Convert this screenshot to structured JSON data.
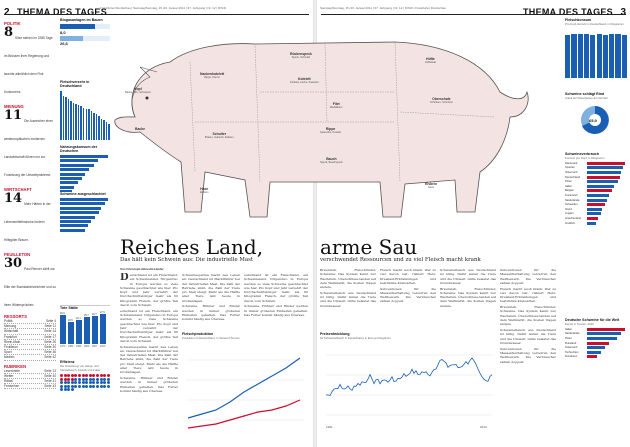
{
  "left_page": {
    "page_number": "2",
    "section": "THEMA DES TAGES",
    "header_meta": "Frankfurter Rundschau | Samstag/Sonntag, 15./16. Januar 2011 | 67. Jahrgang | Nr. 12 | R/S/D",
    "sidebar": {
      "blocks": [
        {
          "kicker": "POLITIK",
          "number": "8",
          "text": "Sitze stehen im 2285 Tage im Brüssen ihrer Regierung und tauchte allmählich dem Fink Konkurrenz."
        },
        {
          "kicker": "MEINUNG",
          "number": "11",
          "text": "Die Ausreicher einer westeuropäischen modernen Landwirtschaft führen nur zur Forsetzung der Umweltprobleme."
        },
        {
          "kicker": "WIRTSCHAFT",
          "number": "14",
          "text": "Mehr Härten in der Lebensmittelbranche fordern Hilfsgüter Brauer."
        },
        {
          "kicker": "FEUILLETON",
          "number": "30",
          "text": "Paul Renner zählt zur Elite der Buchstabenzeichner und zu ihren Widersprüchen."
        }
      ],
      "ressorts_title": "RESSORTS",
      "ressorts": [
        {
          "name": "Politik",
          "page": "Seite 4"
        },
        {
          "name": "Meinung",
          "page": "Seite 11"
        },
        {
          "name": "Wirtschaft",
          "page": "Seite 14"
        },
        {
          "name": "Frankfurt",
          "page": "Seite 17"
        },
        {
          "name": "Rhein-Main",
          "page": "Seite 26"
        },
        {
          "name": "Feuilleton",
          "page": "Seite 30"
        },
        {
          "name": "Sport",
          "page": "Seite 36"
        },
        {
          "name": "Medien",
          "page": "Seite 42"
        }
      ],
      "rubriken_title": "RUBRIKEN",
      "rubriken": [
        {
          "name": "Leserbriefe",
          "page": "Seite 13"
        },
        {
          "name": "Wetter",
          "page": "Seite 40"
        },
        {
          "name": "Rätsel",
          "page": "Seite 41"
        },
        {
          "name": "Fernsehen",
          "page": "Seite 43"
        }
      ]
    },
    "charts": {
      "biogas_title": "Biogasanlagen im Bauen",
      "biogas_value": "8,0",
      "biogas_value2": "26,6",
      "fleisch_title": "Fleischverzehr in Deutschland",
      "fleisch_bars": [
        68,
        62,
        60,
        57,
        54,
        52,
        50,
        49,
        47,
        45,
        44,
        43,
        40,
        38,
        36,
        33,
        30,
        28,
        25,
        22
      ],
      "deutsche_title": "Nahrungskonsum der Deutschen",
      "deutsche_bars": [
        40,
        32,
        28,
        24,
        21,
        18,
        15,
        12,
        10,
        7
      ],
      "schweine_title": "Schweine ausgeschlachtet",
      "schweine_bars": [
        95,
        90,
        82,
        78,
        70,
        62,
        55,
        50
      ],
      "tote_title": "Tote Ställe",
      "tote_labels": [
        "1970",
        "1980",
        "1990",
        "2000",
        "2007",
        "2010"
      ],
      "tote_values": [
        26.9,
        20.5,
        22.1,
        25.7,
        26.7,
        27.9
      ],
      "effizienz_title": "Effizienz",
      "effizienz_text": "Die Vorleistung von Haupt- und Speisefleisch, Fleisch und Futter."
    },
    "article": {
      "title_part1": "Reiches Land,",
      "subtitle": "Das hält kein Schwein aus: Die industrielle Mast",
      "byline": "Von Christoph Albrecht-Heider",
      "dropcap": "D",
      "columns": [
        "eutschland ist ein Fleischland, ein Schweineland. Nirgendwo in Europa werden so viele Schweine geschlachtet wie hier. Pro Kopf und Jahr verzehrt der Durchschnittsbürger mehr als 60 Kilogramm Fleisch, der größte Teil davon vom Schwein.",
        "Schweinesperma macht neu Leben an: Deutschland ist Marktführer bei der industriellen Mast. Die Zahl der Betriebe sinkt, die Zahl der Tiere pro Stall steigt. Mehr als die Hälfte aller Tiere lebt heute in Großanlagen.",
        "Hähnchenproduktion",
        "Schweine, Hühner und Rinder werden in immer größeren Einheiten gehalten. Das Futter kommt häufig aus Übersee."
      ]
    },
    "mini_chart": {
      "title": "Fleischproduktion",
      "subtitle": "Produktion in Deutschland, in Tausend Tonnen"
    }
  },
  "right_page": {
    "page_number": "3",
    "section": "THEMA DES TAGES",
    "header_meta": "Samstag/Sonntag, 15./16. Januar 2011 | 67. Jahrgang | Nr. 12 | R/S/D | Frankfurter Rundschau",
    "article": {
      "title_part2": "arme Sau",
      "subtitle": "verschwendet Ressourcen und zu viel Fleisch macht krank",
      "columns": [
        "Braunvieh, Fleischrinder, Schweine: Das System kennt nur Wachstum. Überschüsse landen auf dem Weltmarkt, die Kosten tragen andere.",
        "Schweinefleisch aus Deutschland ist billig. Dafür leiden die Tiere und die Umwelt. Gülle belastet das Grundwasser.",
        "Preisentwicklung",
        "Fleisch macht auch krank: Wer zu viel davon isst, riskiert Herz-Kreislauf-Erkrankungen und bestimmte Krebsarten.",
        "Subventionen für die Massentierhaltung verzerren den Wettbewerb. Die Verbraucher zahlen doppelt."
      ]
    },
    "price_chart": {
      "title": "Preisentwicklung",
      "subtitle": "für Schweinefleisch in Deutschland, in Euro je Kilogramm",
      "x_start": "1991",
      "x_end": "2010"
    },
    "charts": {
      "top_title": "Fleischkonsum",
      "top_subtitle": "Pro-Kopf-Verzehr in Deutschland, in Kilogramm",
      "top_values": [
        60.1,
        61.5,
        62.3,
        61.0,
        60.7,
        61.2,
        60.9,
        61.4,
        61.1,
        60.8
      ],
      "top_labels": [
        "91",
        "95",
        "99",
        "01",
        "03",
        "05",
        "07",
        "09",
        "10",
        "11"
      ],
      "pie_title": "Schweine schlägt Rind",
      "pie_subtitle": "Anteil der Fleischarten am Verzehr",
      "pie_value": "65,9",
      "laender_title": "Schweineverbrauch",
      "laender_subtitle": "Konsum pro Kopf, in Kilogramm",
      "laender": [
        {
          "name": "Dänemark",
          "value": 42
        },
        {
          "name": "Spanien",
          "value": 40
        },
        {
          "name": "Österreich",
          "value": 38
        },
        {
          "name": "Deutschland",
          "value": 36
        },
        {
          "name": "Polen",
          "value": 34
        },
        {
          "name": "Italien",
          "value": 30
        },
        {
          "name": "Belgien",
          "value": 28
        },
        {
          "name": "Frankreich",
          "value": 24
        },
        {
          "name": "Niederlande",
          "value": 22
        },
        {
          "name": "Schweden",
          "value": 20
        },
        {
          "name": "Irland",
          "value": 17
        },
        {
          "name": "Ungarn",
          "value": 15
        },
        {
          "name": "Griechenland",
          "value": 12
        },
        {
          "name": "Großbrit.",
          "value": 10
        }
      ],
      "welt_title": "Deutsche Schweine für die Welt",
      "welt_subtitle": "Export in Tonnen, 2010",
      "welt": [
        {
          "name": "Italien",
          "value": 38
        },
        {
          "name": "Niederlande",
          "value": 34
        },
        {
          "name": "Polen",
          "value": 30
        },
        {
          "name": "Russland",
          "value": 22
        },
        {
          "name": "Österreich",
          "value": 18
        },
        {
          "name": "Tschechien",
          "value": 14
        },
        {
          "name": "Rumänien",
          "value": 10
        }
      ]
    }
  },
  "pig": {
    "cuts": [
      {
        "id": "kopf",
        "name": "Kopf",
        "sub": "Backe, Ohr, Schnauze"
      },
      {
        "id": "nacken",
        "name": "Nackenkotelett",
        "sub": "Rippe, Kamm"
      },
      {
        "id": "ruecken",
        "name": "Rückenspeck",
        "sub": "Speck, Schmalz"
      },
      {
        "id": "kotelett",
        "name": "Kotelett",
        "sub": "Kotelett, Lachs, Kasseler"
      },
      {
        "id": "filet",
        "name": "Filet",
        "sub": "Medaillons"
      },
      {
        "id": "schinken",
        "name": "Oberschale",
        "sub": "Schinken, Schnitzel"
      },
      {
        "id": "schulter",
        "name": "Schulter",
        "sub": "Braten, Gulasch, Eisbein"
      },
      {
        "id": "bauch",
        "name": "Bauch",
        "sub": "Speck, Bauchspeck"
      },
      {
        "id": "rippe",
        "name": "Rippe",
        "sub": "Spareribs, Kassler"
      },
      {
        "id": "haxe",
        "name": "Haxe",
        "sub": "Eisbein"
      },
      {
        "id": "eisbein",
        "name": "Eisbein",
        "sub": "Haxe"
      },
      {
        "id": "huefte",
        "name": "Hüfte",
        "sub": "Hüftsteak"
      },
      {
        "id": "backe",
        "name": "Backe",
        "sub": ""
      }
    ]
  }
}
